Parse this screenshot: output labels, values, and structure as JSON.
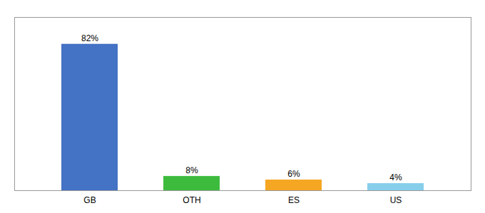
{
  "chart_data": {
    "type": "bar",
    "categories": [
      "GB",
      "OTH",
      "ES",
      "US"
    ],
    "values": [
      82,
      8,
      6,
      4
    ],
    "value_labels": [
      "82%",
      "8%",
      "6%",
      "4%"
    ],
    "colors": [
      "#4472c4",
      "#3dbb3d",
      "#f5a623",
      "#87ceeb"
    ],
    "ylim": [
      0,
      97
    ],
    "data_labels": true,
    "tick_labels": "x"
  }
}
